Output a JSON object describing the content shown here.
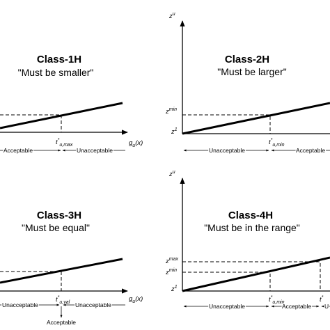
{
  "panels": [
    {
      "title": "Class-1H",
      "subtitle": "\"Must be smaller\"",
      "x_axis": {
        "base": "g",
        "sub": "u",
        "tail": "(x)"
      },
      "threshold": {
        "base": "t",
        "sup": "*",
        "sub": "u,max"
      },
      "regions": [
        "Acceptable",
        "Unacceptable"
      ]
    },
    {
      "title": "Class-2H",
      "subtitle": "\"Must be larger\"",
      "y_axis": {
        "base": "z",
        "sup": "u"
      },
      "levels": [
        {
          "base": "z",
          "sup": "min"
        },
        {
          "base": "z",
          "sup": "1"
        }
      ],
      "threshold": {
        "base": "t",
        "sup": "*",
        "sub": "u,min"
      },
      "regions": [
        "Unacceptable",
        "Acceptable"
      ]
    },
    {
      "title": "Class-3H",
      "subtitle": "\"Must be equal\"",
      "x_axis": {
        "base": "g",
        "sub": "u",
        "tail": "(x)"
      },
      "threshold": {
        "base": "t",
        "sup": "*",
        "sub": "u,val"
      },
      "regions": [
        "Unacceptable",
        "Unacceptable"
      ],
      "point_label": "Acceptable"
    },
    {
      "title": "Class-4H",
      "subtitle": "\"Must be in the range\"",
      "y_axis": {
        "base": "z",
        "sup": "u"
      },
      "levels": [
        {
          "base": "z",
          "sup": "max"
        },
        {
          "base": "z",
          "sup": "min"
        },
        {
          "base": "z",
          "sup": "1"
        }
      ],
      "thresholds": [
        {
          "base": "t",
          "sup": "*",
          "sub": "u,min"
        },
        {
          "base": "t",
          "sup": "*"
        }
      ],
      "regions": [
        "Unacceptable",
        "Acceptable",
        "U"
      ]
    }
  ]
}
